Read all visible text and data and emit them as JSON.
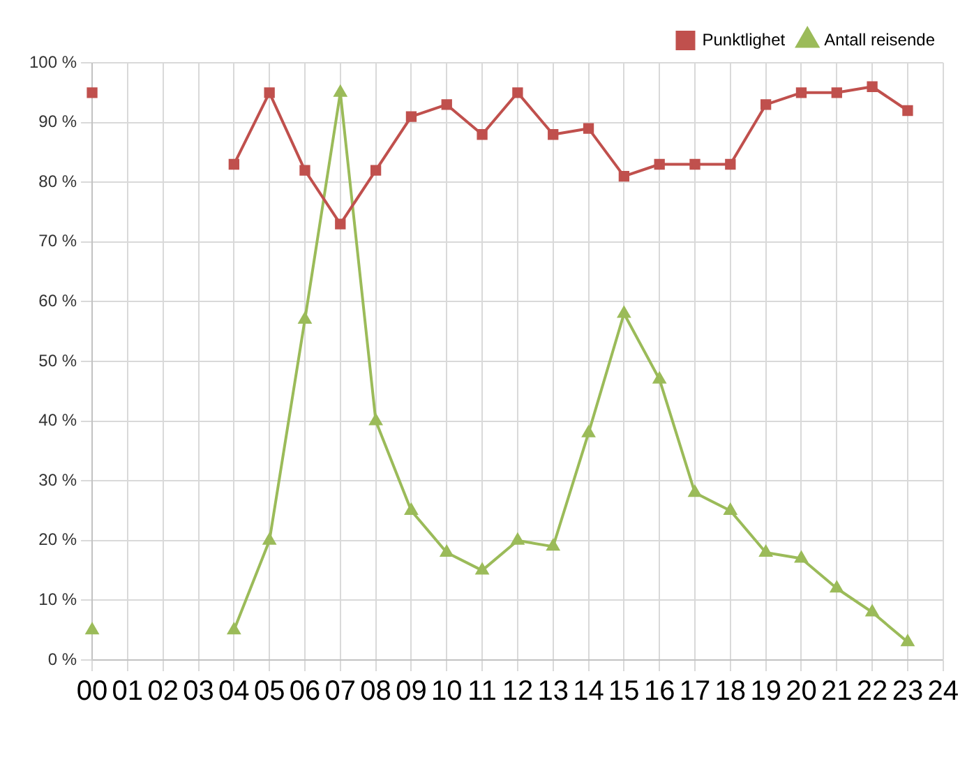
{
  "chart_data": {
    "type": "line",
    "categories": [
      "00",
      "01",
      "02",
      "03",
      "04",
      "05",
      "06",
      "07",
      "08",
      "09",
      "10",
      "11",
      "12",
      "13",
      "14",
      "15",
      "16",
      "17",
      "18",
      "19",
      "20",
      "21",
      "22",
      "23",
      "24"
    ],
    "series": [
      {
        "name": "Punktlighet",
        "color": "#c0504d",
        "marker": "square",
        "values": [
          95,
          null,
          null,
          null,
          83,
          95,
          82,
          73,
          82,
          91,
          93,
          88,
          95,
          88,
          89,
          81,
          83,
          83,
          83,
          93,
          95,
          95,
          96,
          92,
          null
        ]
      },
      {
        "name": "Antall reisende",
        "color": "#9bbb59",
        "marker": "triangle",
        "values": [
          5,
          null,
          null,
          null,
          5,
          20,
          57,
          95,
          40,
          25,
          18,
          15,
          20,
          19,
          38,
          58,
          47,
          28,
          25,
          18,
          17,
          12,
          8,
          3,
          null
        ]
      }
    ],
    "ylim": [
      0,
      100
    ],
    "yticks": [
      {
        "value": 0,
        "label": "0 %"
      },
      {
        "value": 10,
        "label": "10 %"
      },
      {
        "value": 20,
        "label": "20 %"
      },
      {
        "value": 30,
        "label": "30 %"
      },
      {
        "value": 40,
        "label": "40 %"
      },
      {
        "value": 50,
        "label": "50 %"
      },
      {
        "value": 60,
        "label": "60 %"
      },
      {
        "value": 70,
        "label": "70 %"
      },
      {
        "value": 80,
        "label": "80 %"
      },
      {
        "value": 90,
        "label": "90 %"
      },
      {
        "value": 100,
        "label": "100 %"
      }
    ],
    "grid": true,
    "legend": "top right",
    "line_style": "solid"
  }
}
